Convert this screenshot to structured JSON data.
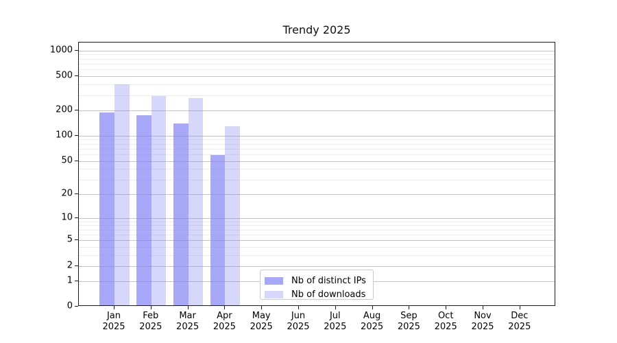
{
  "chart_data": {
    "type": "bar",
    "title": "Trendy 2025",
    "categories": [
      "Jan",
      "Feb",
      "Mar",
      "Apr",
      "May",
      "Jun",
      "Jul",
      "Aug",
      "Sep",
      "Oct",
      "Nov",
      "Dec"
    ],
    "year_label": "2025",
    "series": [
      {
        "name": "Nb of distinct IPs",
        "values": [
          180,
          168,
          135,
          57,
          0,
          0,
          0,
          0,
          0,
          0,
          0,
          0
        ]
      },
      {
        "name": "Nb of downloads",
        "values": [
          390,
          283,
          265,
          124,
          0,
          0,
          0,
          0,
          0,
          0,
          0,
          0
        ]
      }
    ],
    "y_axis": {
      "scale": "log10(1+value)",
      "ticks": [
        0,
        1,
        2,
        5,
        10,
        20,
        50,
        100,
        200,
        500,
        1000
      ],
      "minor_gridlines": [
        3,
        4,
        6,
        7,
        8,
        9,
        30,
        40,
        60,
        70,
        80,
        90,
        300,
        400,
        600,
        700,
        800,
        900
      ],
      "ylim": [
        0,
        1000
      ]
    },
    "xlabel": "",
    "ylabel": "",
    "grid": "both",
    "legend_position": "inside-bottom-center",
    "colors": {
      "bar_base": "#7b7bf5",
      "ips_bar_alpha": 0.66,
      "downloads_bar_alpha": 0.3,
      "ips_bar_hex": "#a8a8f8",
      "downloads_bar_hex": "#d9d9fb",
      "major_grid": "#c4c4c4",
      "minor_grid": "#ededed",
      "axis": "#1a1a1a"
    }
  }
}
